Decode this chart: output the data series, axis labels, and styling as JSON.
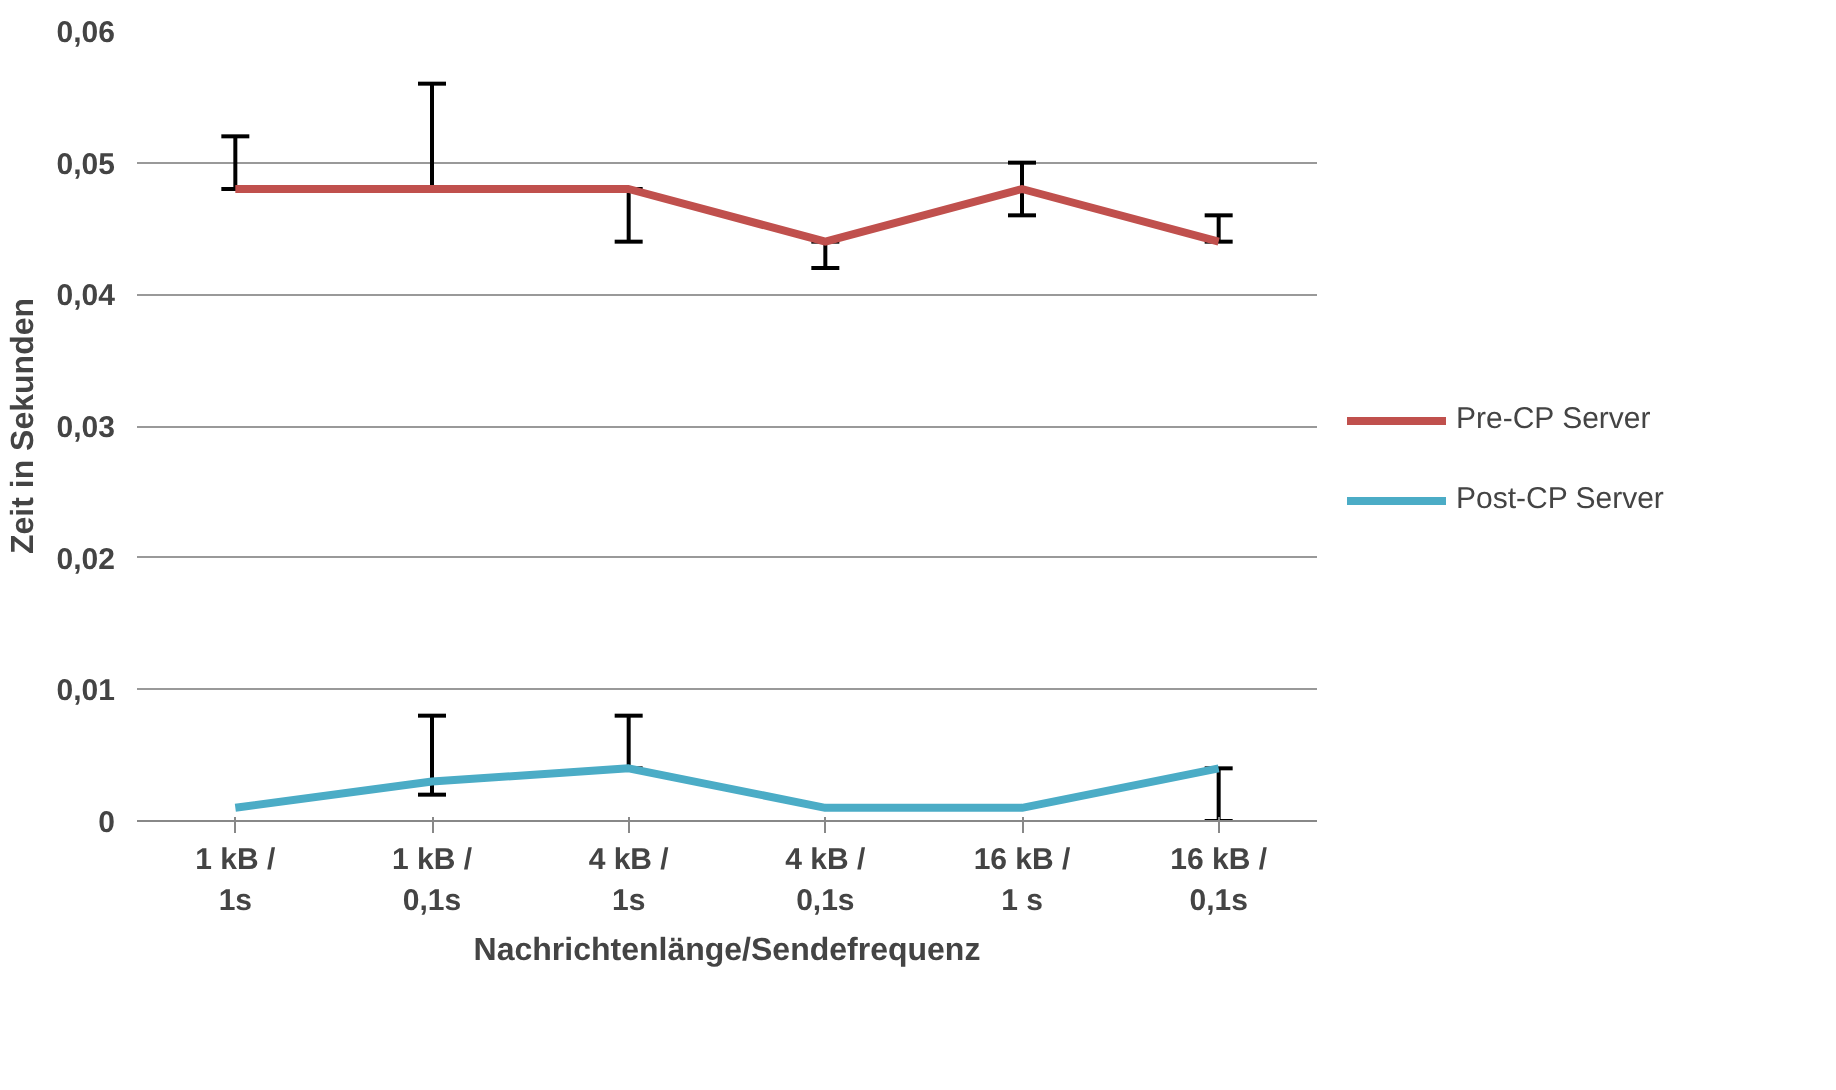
{
  "chart_data": {
    "type": "line",
    "xlabel": "Nachrichtenlänge/Sendefrequenz",
    "ylabel": "Zeit in Sekunden",
    "categories": [
      "1 kB /\n1s",
      "1 kB /\n0,1s",
      "4 kB /\n1s",
      "4 kB /\n0,1s",
      "16 kB /\n1 s",
      "16 kB /\n0,1s"
    ],
    "series": [
      {
        "name": "Pre-CP Server",
        "color": "#c0504d",
        "values": [
          0.048,
          0.048,
          0.048,
          0.044,
          0.048,
          0.044
        ],
        "errors": [
          [
            0.048,
            0.052
          ],
          [
            0.048,
            0.056
          ],
          [
            0.044,
            0.048
          ],
          [
            0.042,
            0.044
          ],
          [
            0.046,
            0.05
          ],
          [
            0.044,
            0.046
          ]
        ]
      },
      {
        "name": "Post-CP Server",
        "color": "#4bacc6",
        "values": [
          0.001,
          0.003,
          0.004,
          0.001,
          0.001,
          0.004
        ],
        "errors": [
          null,
          [
            0.002,
            0.008
          ],
          [
            0.004,
            0.008
          ],
          null,
          null,
          [
            0,
            0.004
          ]
        ]
      }
    ],
    "ylim": [
      0,
      0.06
    ],
    "yticks": [
      0,
      {
        "value": 0.01,
        "label": "0,01"
      },
      {
        "value": 0.02,
        "label": "0,02"
      },
      {
        "value": 0.03,
        "label": "0,03"
      },
      {
        "value": 0.04,
        "label": "0,04"
      },
      {
        "value": 0.05,
        "label": "0,05"
      },
      {
        "value": 0.06,
        "label": "0,06"
      }
    ],
    "grid": "y",
    "legend": "right",
    "marker": "none",
    "line_style": "solid"
  }
}
